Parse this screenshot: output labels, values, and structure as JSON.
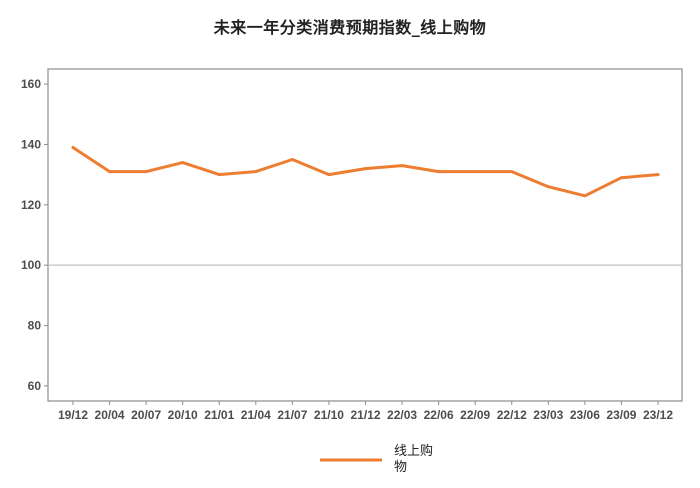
{
  "chart_data": {
    "type": "line",
    "title": "未来一年分类消费预期指数_线上购物",
    "xlabel": "",
    "ylabel": "",
    "categories": [
      "19/12",
      "20/04",
      "20/07",
      "20/10",
      "21/01",
      "21/04",
      "21/07",
      "21/10",
      "21/12",
      "22/03",
      "22/06",
      "22/09",
      "22/12",
      "23/03",
      "23/06",
      "23/09",
      "23/12"
    ],
    "ylim": [
      55,
      165
    ],
    "yticks": [
      60,
      80,
      100,
      120,
      140,
      160
    ],
    "reference_line": 100,
    "grid": false,
    "legend_position": "bottom-center",
    "series": [
      {
        "name": "线上购物",
        "color": "#ED7D31",
        "values": [
          139,
          131,
          131,
          134,
          130,
          131,
          135,
          130,
          132,
          133,
          131,
          131,
          131,
          126,
          123,
          129,
          130
        ]
      }
    ]
  }
}
